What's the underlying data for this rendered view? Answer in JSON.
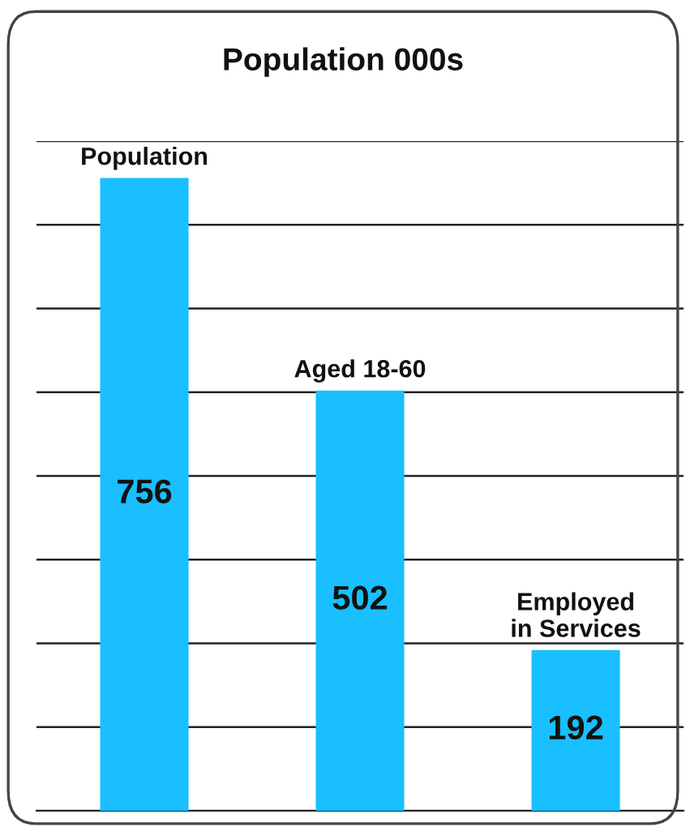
{
  "chart_data": {
    "type": "bar",
    "title": "Population 000s",
    "categories": [
      "Population",
      "Aged 18-60",
      "Employed\nin Services"
    ],
    "values": [
      756,
      502,
      192
    ],
    "color": "#19bfff",
    "data_labels": true,
    "ylim": [
      0,
      800
    ],
    "yticks": [
      {
        "value": 0,
        "label": null
      },
      {
        "value": 100,
        "label": null
      },
      {
        "value": 200,
        "label": null
      },
      {
        "value": 300,
        "label": null
      },
      {
        "value": 400,
        "label": null
      },
      {
        "value": 500,
        "label": null
      },
      {
        "value": 600,
        "label": null
      },
      {
        "value": 700,
        "label": null
      },
      {
        "value": 800,
        "label": null
      }
    ],
    "grid": "y"
  }
}
